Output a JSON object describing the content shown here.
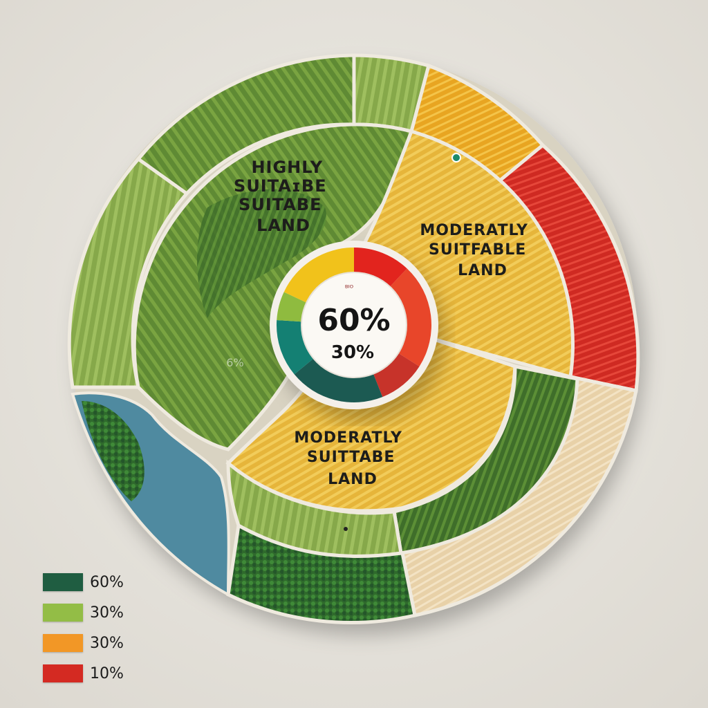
{
  "chart_data": {
    "type": "pie",
    "title": "",
    "center": {
      "main_value": "60%",
      "sub_value": "30%",
      "small_mark": "ᴮᴵᴼ"
    },
    "regions": [
      {
        "name": "highly-suitable",
        "label_lines": [
          "HIGHLY",
          "SUITAɪBE",
          "SUITABE",
          "LAND"
        ],
        "color": "#5f8a34"
      },
      {
        "name": "moderately-suitable-upper",
        "label_lines": [
          "MODERATLY",
          "SUITFABLE",
          "LAND"
        ],
        "color": "#e8b838"
      },
      {
        "name": "moderately-suitable-lower",
        "label_lines": [
          "MODERATLY",
          "SUITTABE",
          "LAND"
        ],
        "color": "#e9bb3c"
      },
      {
        "name": "unsuitable",
        "label_lines": [],
        "color": "#d42a22"
      }
    ],
    "faint_label": "6%",
    "center_ring_segments": [
      {
        "value": 12,
        "color": "#e2241e"
      },
      {
        "value": 22,
        "color": "#e8462a"
      },
      {
        "value": 10,
        "color": "#c7332a"
      },
      {
        "value": 20,
        "color": "#1c5a52"
      },
      {
        "value": 12,
        "color": "#148073"
      },
      {
        "value": 6,
        "color": "#8fbb3f"
      },
      {
        "value": 18,
        "color": "#f1c21b"
      }
    ],
    "legend": [
      {
        "label": "60%",
        "color": "#1f5d41"
      },
      {
        "label": "30%",
        "color": "#93bd46"
      },
      {
        "label": "30%",
        "color": "#f29726"
      },
      {
        "label": "10%",
        "color": "#d42a22"
      }
    ]
  }
}
